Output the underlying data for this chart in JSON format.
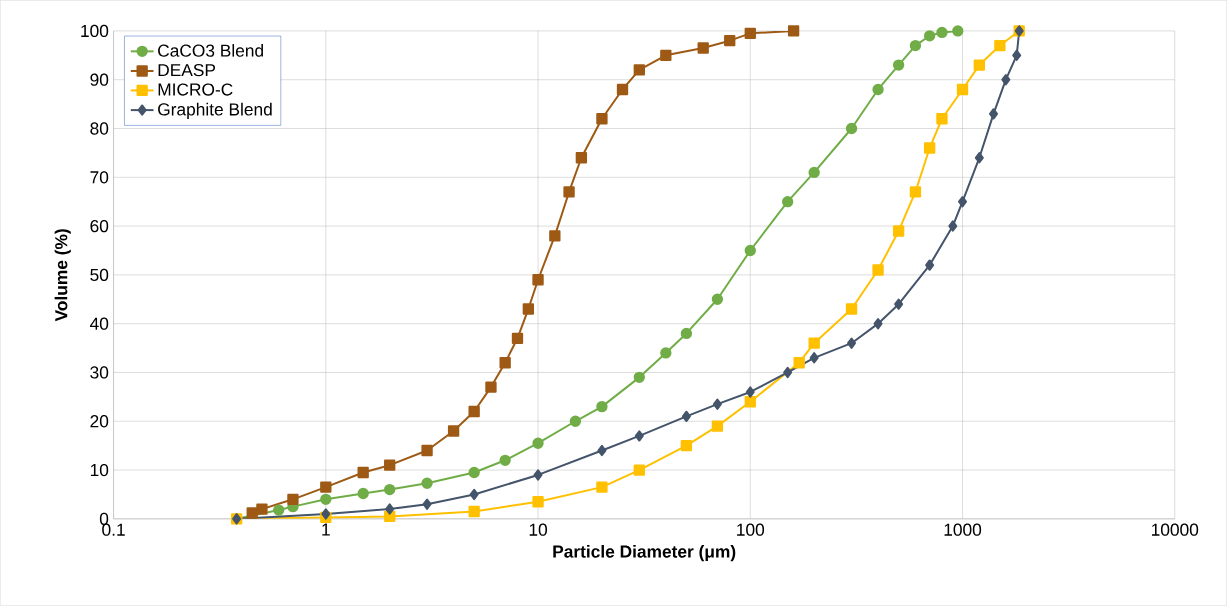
{
  "chart_data": {
    "type": "line",
    "xlabel": "Particle Diameter (μm)",
    "ylabel": "Volume (%)",
    "log": "x",
    "grid": true,
    "legend": "top left",
    "xlim": [
      0.1,
      10000
    ],
    "xticks": [
      0.1,
      1,
      10,
      100,
      1000,
      10000
    ],
    "ylim": [
      0,
      100
    ],
    "yticks": [
      0,
      10,
      20,
      30,
      40,
      50,
      60,
      70,
      80,
      90,
      100
    ],
    "series": [
      {
        "name": "CaCO3 Blend",
        "color": "#70ad47",
        "marker": "circle",
        "x": [
          0.38,
          0.6,
          0.7,
          1,
          1.5,
          2,
          3,
          5,
          7,
          10,
          15,
          20,
          30,
          40,
          50,
          70,
          100,
          150,
          200,
          300,
          400,
          500,
          600,
          700,
          800,
          950
        ],
        "values": [
          0,
          1.8,
          2.5,
          4,
          5.2,
          6,
          7.3,
          9.5,
          12,
          15.5,
          20,
          23,
          29,
          34,
          38,
          45,
          55,
          65,
          71,
          80,
          88,
          93,
          97,
          99,
          99.7,
          100
        ]
      },
      {
        "name": "DEASP",
        "color": "#9e5a14",
        "marker": "square",
        "x": [
          0.45,
          0.5,
          0.7,
          1,
          1.5,
          2,
          3,
          4,
          5,
          6,
          7,
          8,
          9,
          10,
          12,
          14,
          16,
          20,
          25,
          30,
          40,
          60,
          80,
          100,
          160
        ],
        "values": [
          1.2,
          2,
          4,
          6.5,
          9.5,
          11,
          14,
          18,
          22,
          27,
          32,
          37,
          43,
          49,
          58,
          67,
          74,
          82,
          88,
          92,
          95,
          96.5,
          98,
          99.5,
          100
        ]
      },
      {
        "name": "MICRO-C",
        "color": "#ffc000",
        "marker": "square",
        "x": [
          0.38,
          1,
          2,
          5,
          10,
          20,
          30,
          50,
          70,
          100,
          170,
          200,
          300,
          400,
          500,
          600,
          700,
          800,
          1000,
          1200,
          1500,
          1850
        ],
        "values": [
          0,
          0.3,
          0.5,
          1.5,
          3.5,
          6.5,
          10,
          15,
          19,
          24,
          32,
          36,
          43,
          51,
          59,
          67,
          76,
          82,
          88,
          93,
          97,
          100
        ]
      },
      {
        "name": "Graphite Blend",
        "color": "#44546a",
        "marker": "diamond",
        "x": [
          0.38,
          1,
          2,
          3,
          5,
          10,
          20,
          30,
          50,
          70,
          100,
          150,
          200,
          300,
          400,
          500,
          700,
          900,
          1000,
          1200,
          1400,
          1600,
          1800,
          1850
        ],
        "values": [
          0,
          1,
          2,
          3,
          5,
          9,
          14,
          17,
          21,
          23.5,
          26,
          30,
          33,
          36,
          40,
          44,
          52,
          60,
          65,
          74,
          83,
          90,
          95,
          100
        ]
      }
    ]
  }
}
